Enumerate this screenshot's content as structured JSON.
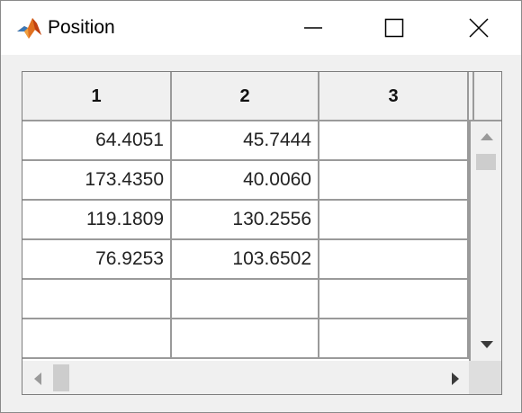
{
  "window": {
    "title": "Position",
    "icon": "matlab-icon",
    "controls": [
      "minimize-icon",
      "maximize-icon",
      "close-icon"
    ]
  },
  "table": {
    "columns": [
      "1",
      "2",
      "3"
    ],
    "rows": [
      [
        "64.4051",
        "45.7444",
        ""
      ],
      [
        "173.4350",
        "40.0060",
        ""
      ],
      [
        "119.1809",
        "130.2556",
        ""
      ],
      [
        "76.9253",
        "103.6502",
        ""
      ],
      [
        "",
        "",
        ""
      ],
      [
        "",
        "",
        ""
      ]
    ]
  },
  "scrollbars": {
    "vertical": {
      "up": "scroll-up-arrow-icon",
      "down": "scroll-down-arrow-icon"
    },
    "horizontal": {
      "left": "scroll-left-arrow-icon",
      "right": "scroll-right-arrow-icon"
    }
  }
}
